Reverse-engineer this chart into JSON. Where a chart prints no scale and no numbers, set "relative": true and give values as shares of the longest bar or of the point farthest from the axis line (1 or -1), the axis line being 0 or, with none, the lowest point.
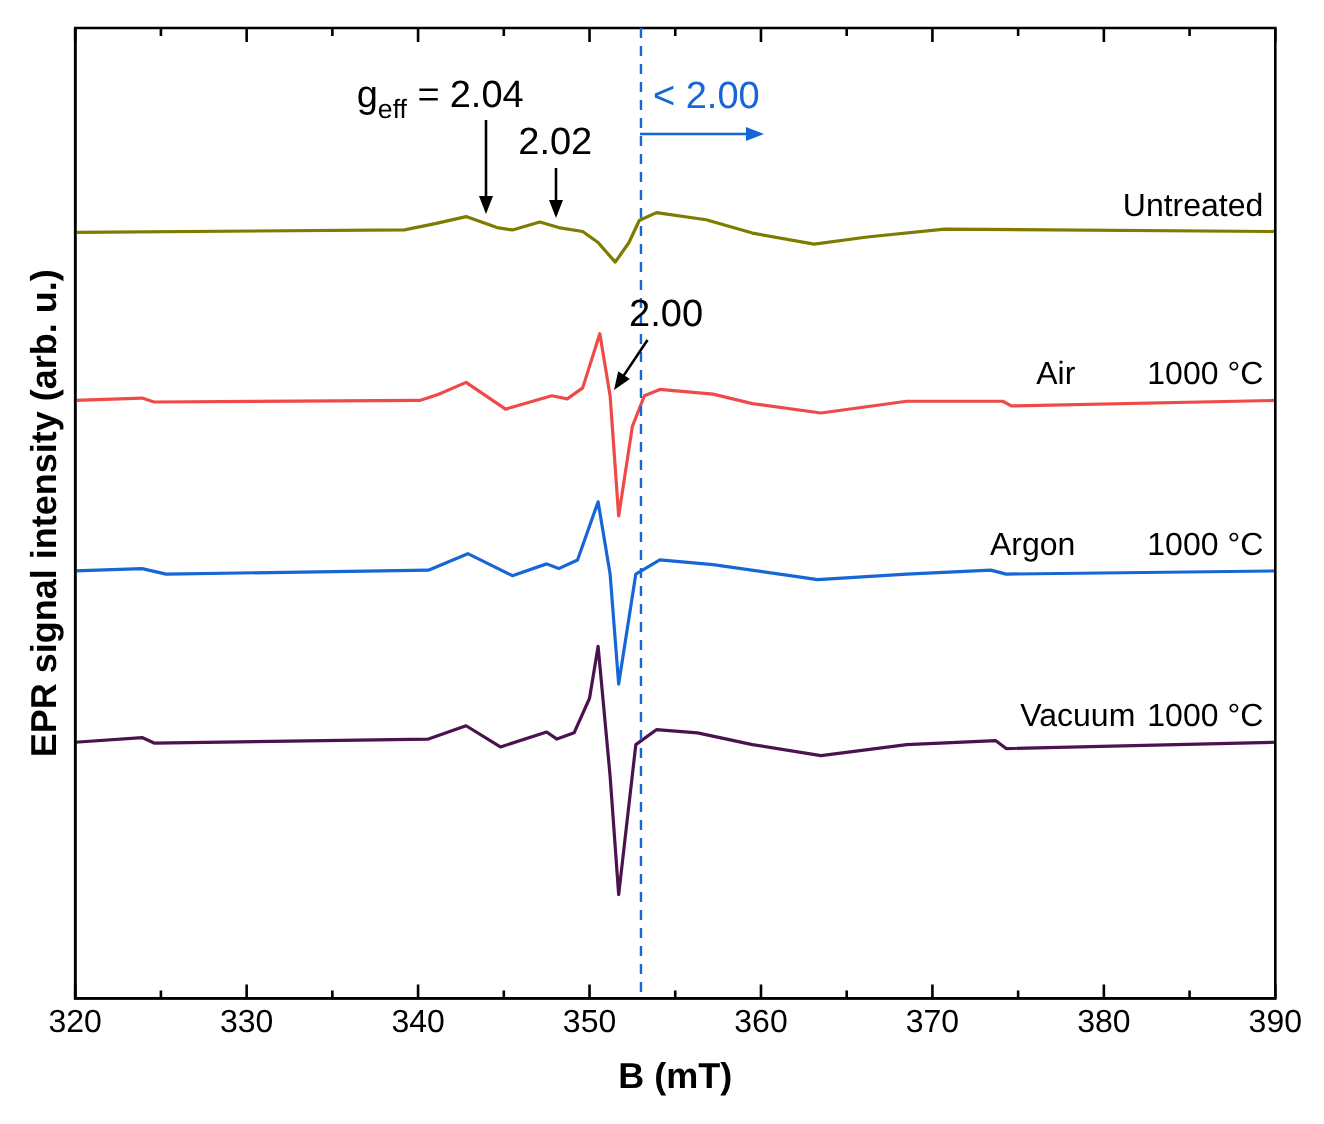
{
  "chart_data": {
    "type": "line",
    "relative": true,
    "xlabel": "B (mT)",
    "ylabel": "EPR signal intensity (arb. u.)",
    "xlim": [
      320,
      390
    ],
    "xticks": [
      320,
      {
        "value": 325,
        "label": null
      },
      330,
      {
        "value": 335,
        "label": null
      },
      340,
      {
        "value": 345,
        "label": null
      },
      350,
      {
        "value": 355,
        "label": null
      },
      360,
      {
        "value": 365,
        "label": null
      },
      370,
      {
        "value": 375,
        "label": null
      },
      380,
      {
        "value": 385,
        "label": null
      },
      390
    ],
    "grid": false,
    "legend": false,
    "marker": "none",
    "line_style": "solid",
    "series": [
      {
        "name": "Untreated",
        "color": "#7f7a00",
        "x": [
          320,
          339.2,
          341.0,
          342.8,
          344.6,
          345.5,
          347.1,
          348.2,
          349.6,
          350.5,
          351.5,
          352.3,
          352.9,
          353.9,
          356.8,
          359.5,
          363.1,
          366.2,
          370.7,
          390
        ],
        "values": [
          0.975,
          0.978,
          0.986,
          0.995,
          0.981,
          0.978,
          0.988,
          0.981,
          0.976,
          0.962,
          0.937,
          0.962,
          0.99,
          1.0,
          0.991,
          0.974,
          0.96,
          0.969,
          0.979,
          0.976
        ]
      },
      {
        "name": "Air",
        "color": "#f04a48",
        "x": [
          320,
          323.9,
          324.6,
          340.1,
          341.2,
          342.8,
          345.1,
          347.8,
          348.7,
          349.6,
          350.6,
          351.2,
          351.7,
          352.5,
          353.2,
          354.1,
          357.2,
          359.5,
          363.5,
          368.5,
          374.1,
          374.6,
          390
        ],
        "values": [
          0.761,
          0.764,
          0.759,
          0.761,
          0.769,
          0.784,
          0.75,
          0.767,
          0.763,
          0.777,
          0.846,
          0.767,
          0.614,
          0.728,
          0.767,
          0.775,
          0.769,
          0.757,
          0.745,
          0.76,
          0.76,
          0.754,
          0.761
        ]
      },
      {
        "name": "Argon",
        "color": "#1766d6",
        "x": [
          320,
          323.9,
          325.3,
          340.6,
          342.9,
          345.5,
          347.5,
          348.2,
          349.3,
          350.5,
          351.2,
          351.7,
          352.7,
          354.1,
          357.2,
          361.7,
          363.3,
          368.5,
          373.4,
          374.3,
          390
        ],
        "values": [
          0.544,
          0.547,
          0.54,
          0.545,
          0.566,
          0.538,
          0.553,
          0.547,
          0.558,
          0.632,
          0.54,
          0.4,
          0.54,
          0.558,
          0.552,
          0.538,
          0.533,
          0.54,
          0.545,
          0.54,
          0.544
        ]
      },
      {
        "name": "Vacuum",
        "color": "#4b1250",
        "x": [
          320,
          323.9,
          324.6,
          340.6,
          342.8,
          344.8,
          347.5,
          348.1,
          349.1,
          350.0,
          350.5,
          351.2,
          351.7,
          352.7,
          353.9,
          356.3,
          359.5,
          363.5,
          368.5,
          373.7,
          374.3,
          390
        ],
        "values": [
          0.326,
          0.332,
          0.325,
          0.33,
          0.347,
          0.32,
          0.339,
          0.33,
          0.338,
          0.382,
          0.448,
          0.283,
          0.132,
          0.323,
          0.342,
          0.338,
          0.323,
          0.309,
          0.323,
          0.328,
          0.318,
          0.326
        ]
      }
    ],
    "ref_lines": [
      {
        "axis": "x",
        "value": 353,
        "color": "#1766d6",
        "line_style": "dashed"
      }
    ],
    "annotations": [
      {
        "text": "2.02",
        "x": 348,
        "y": 0.985
      },
      "g$_{eff}$ =",
      {
        "text": "2.04",
        "x": 344,
        "y": 0.99
      },
      {
        "text": "2.00",
        "x": 351.2,
        "y": 0.767
      },
      {
        "text": "1000 °C",
        "x": 390,
        "y": 0.761
      },
      {
        "text": "1000 °C",
        "x": 390,
        "y": 0.544
      },
      {
        "text": "1000 °C",
        "x": 390,
        "y": 0.326
      },
      "< 2.00"
    ]
  }
}
